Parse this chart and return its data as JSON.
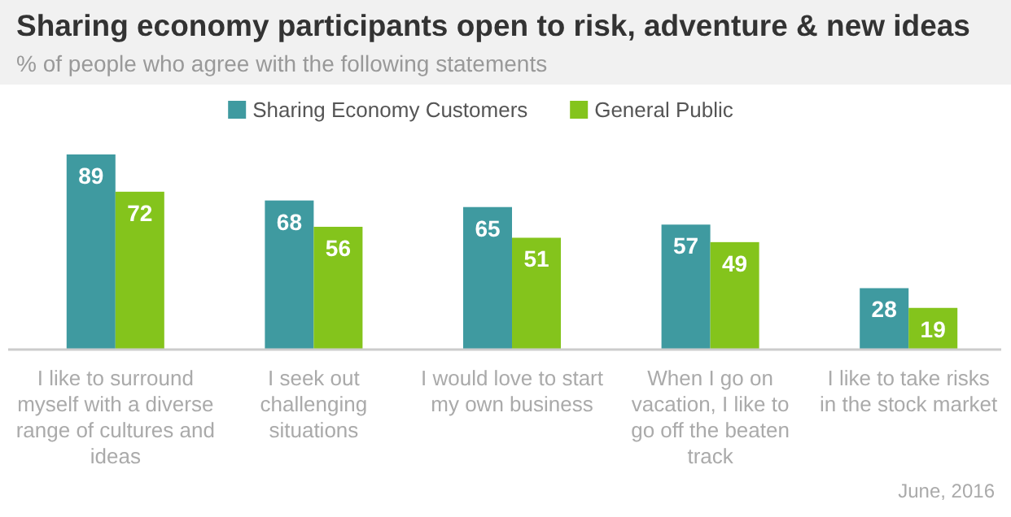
{
  "chart_data": {
    "type": "bar",
    "title": "Sharing economy participants open to risk, adventure & new ideas",
    "subtitle": "% of people who agree with the following statements",
    "categories": [
      "I like to surround myself with a diverse range of cultures and ideas",
      "I seek out challenging situations",
      "I would love to start my own business",
      "When I go on vacation, I like to go off the beaten track",
      "I like to take risks in the stock market"
    ],
    "series": [
      {
        "name": "Sharing Economy Customers",
        "color": "#3f9aa0",
        "values": [
          89,
          68,
          65,
          57,
          28
        ]
      },
      {
        "name": "General Public",
        "color": "#84c41c",
        "values": [
          72,
          56,
          51,
          49,
          19
        ]
      }
    ],
    "data_labels": true,
    "legend": "top",
    "annotations": [
      "June, 2016"
    ]
  }
}
